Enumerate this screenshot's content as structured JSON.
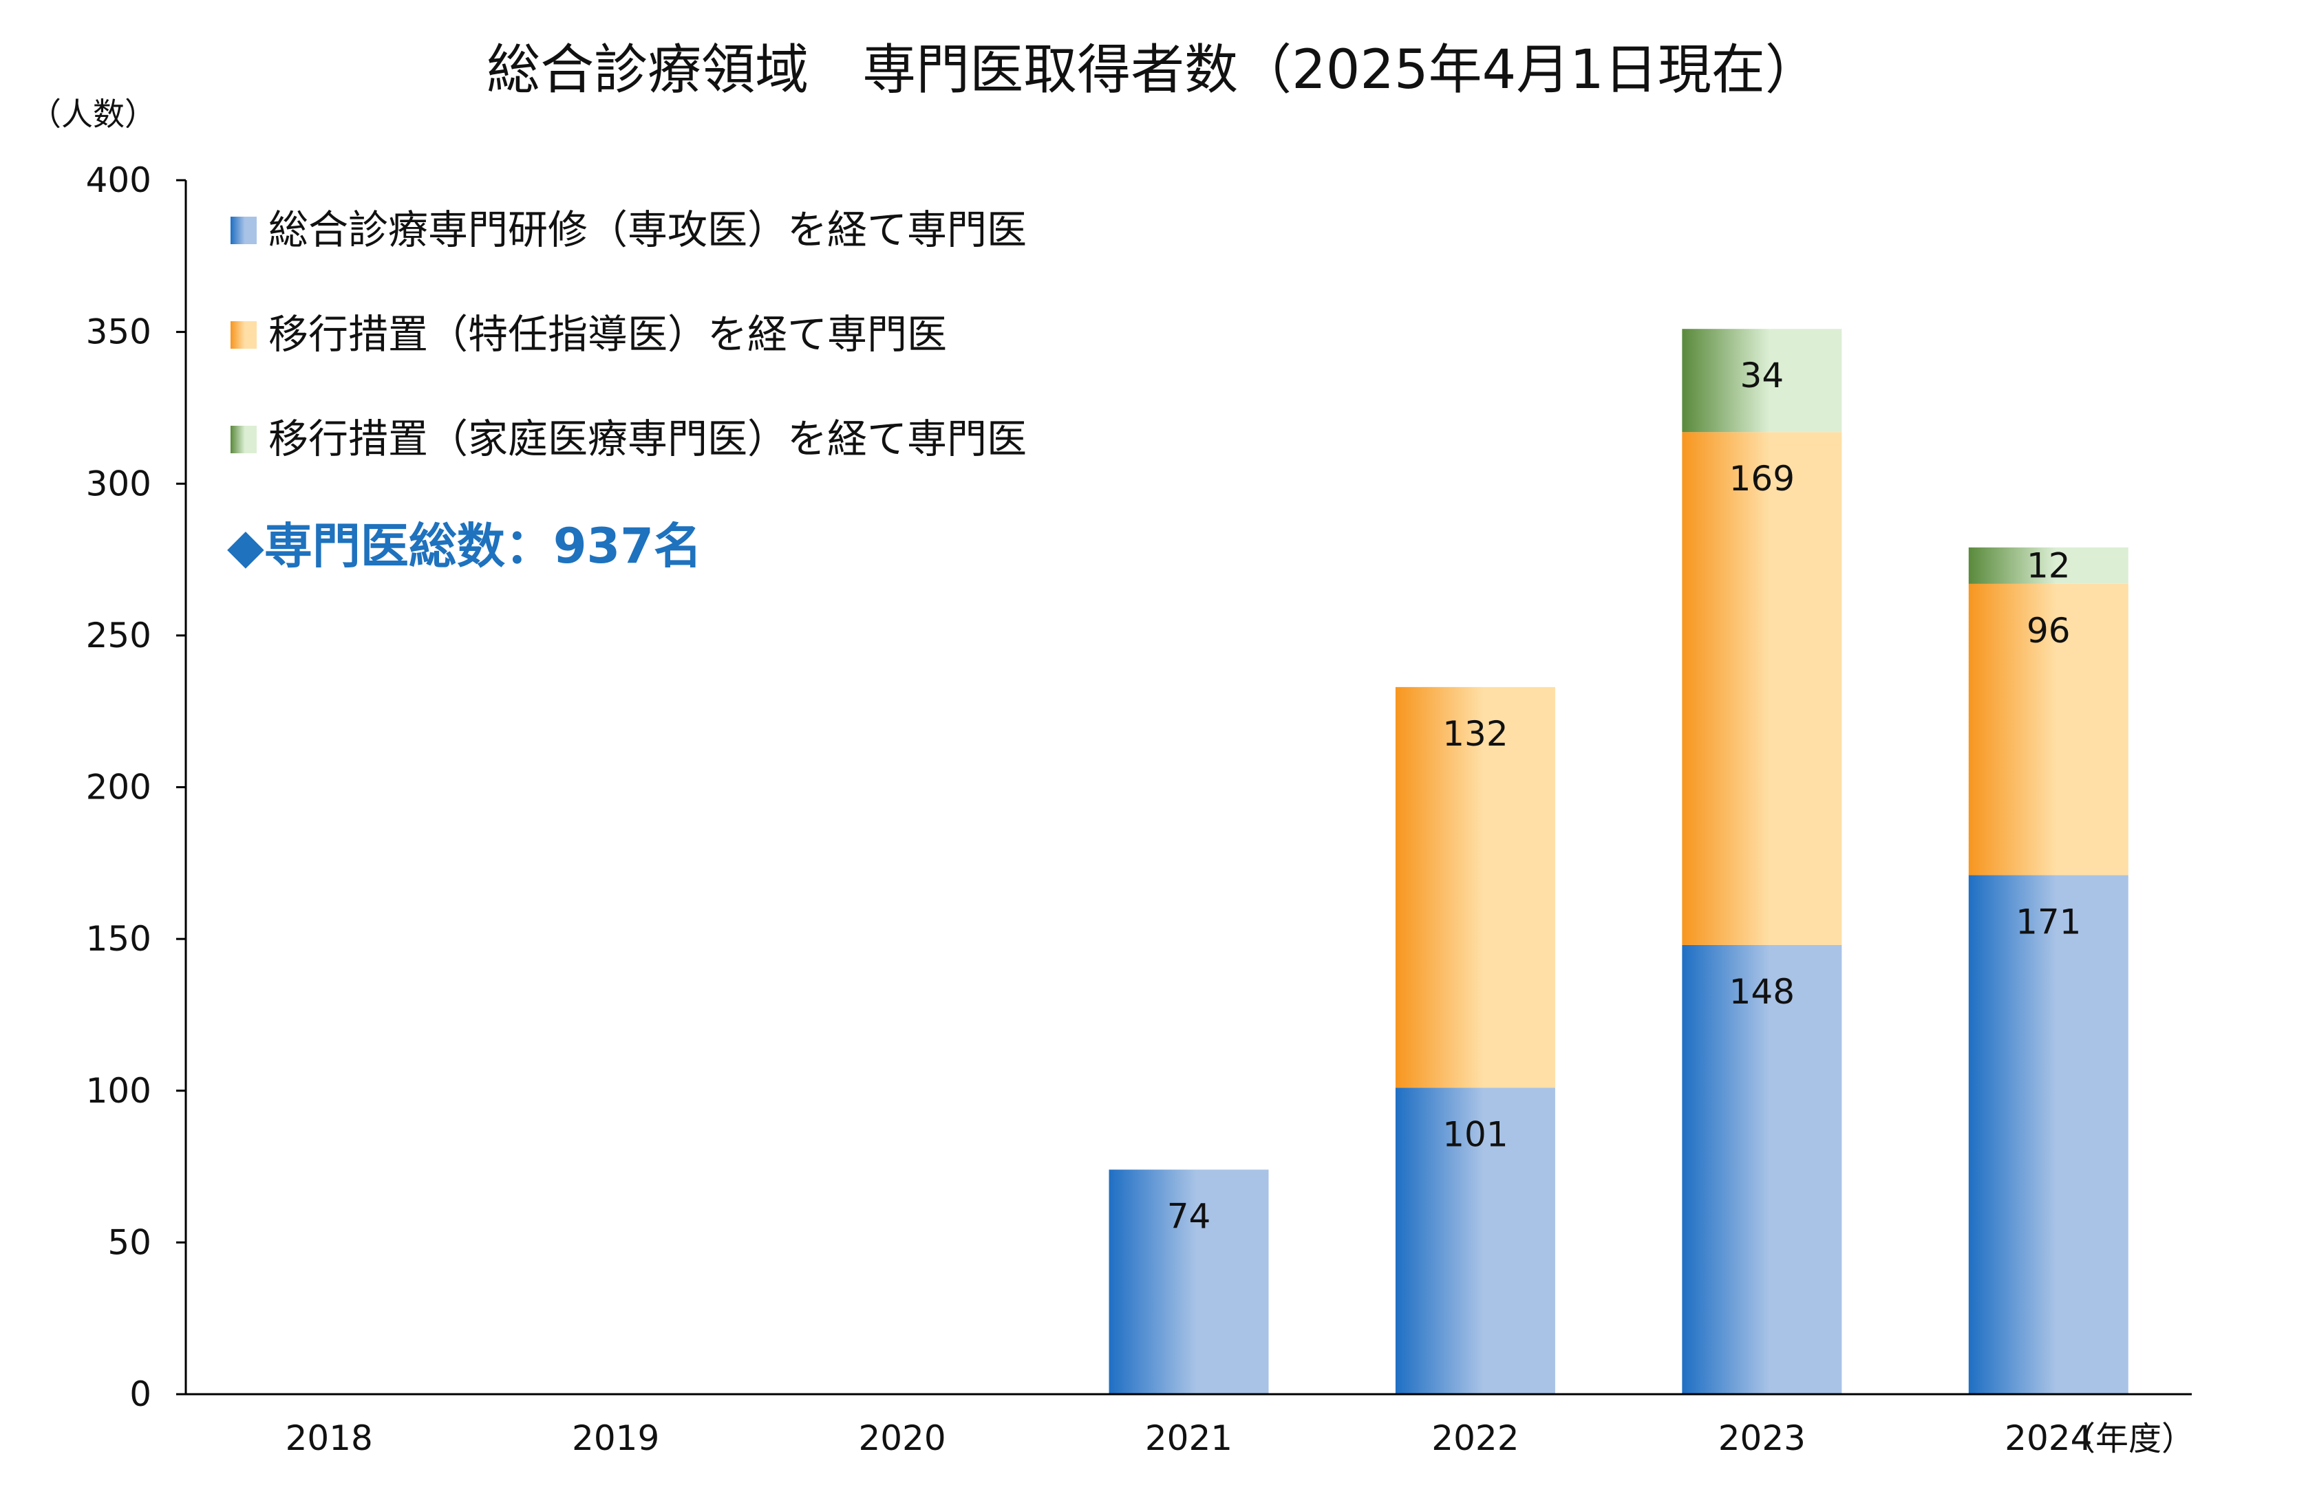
{
  "chart_data": {
    "type": "bar",
    "stacked": true,
    "title": "総合診療領域　専門医取得者数（2025年4月1日現在）",
    "ylabel": "（人数）",
    "xlabel": "（年度）",
    "ylim": [
      0,
      400
    ],
    "yticks": [
      "0",
      "50",
      "100",
      "150",
      "200",
      "250",
      "300",
      "350",
      "400"
    ],
    "categories": [
      "2018",
      "2019",
      "2020",
      "2021",
      "2022",
      "2023",
      "2024"
    ],
    "series": [
      {
        "name": "総合診療専門研修（専攻医）を経て専門医",
        "color": "#1f6fc4",
        "color_light": "#a9c3e6",
        "values": [
          0,
          0,
          0,
          74,
          101,
          148,
          171
        ]
      },
      {
        "name": "移行措置（特任指導医）を経て専門医",
        "color": "#f7961f",
        "color_light": "#ffdfa6",
        "values": [
          0,
          0,
          0,
          0,
          132,
          169,
          96
        ]
      },
      {
        "name": "移行措置（家庭医療専門医）を経て専門医",
        "color": "#5a8a3c",
        "color_light": "#dcefd4",
        "values": [
          0,
          0,
          0,
          0,
          0,
          34,
          12
        ]
      }
    ],
    "legend_position": "top-left",
    "grid": false,
    "annotation": {
      "text": "◆専門医総数：937名",
      "color": "#1e72be"
    }
  }
}
